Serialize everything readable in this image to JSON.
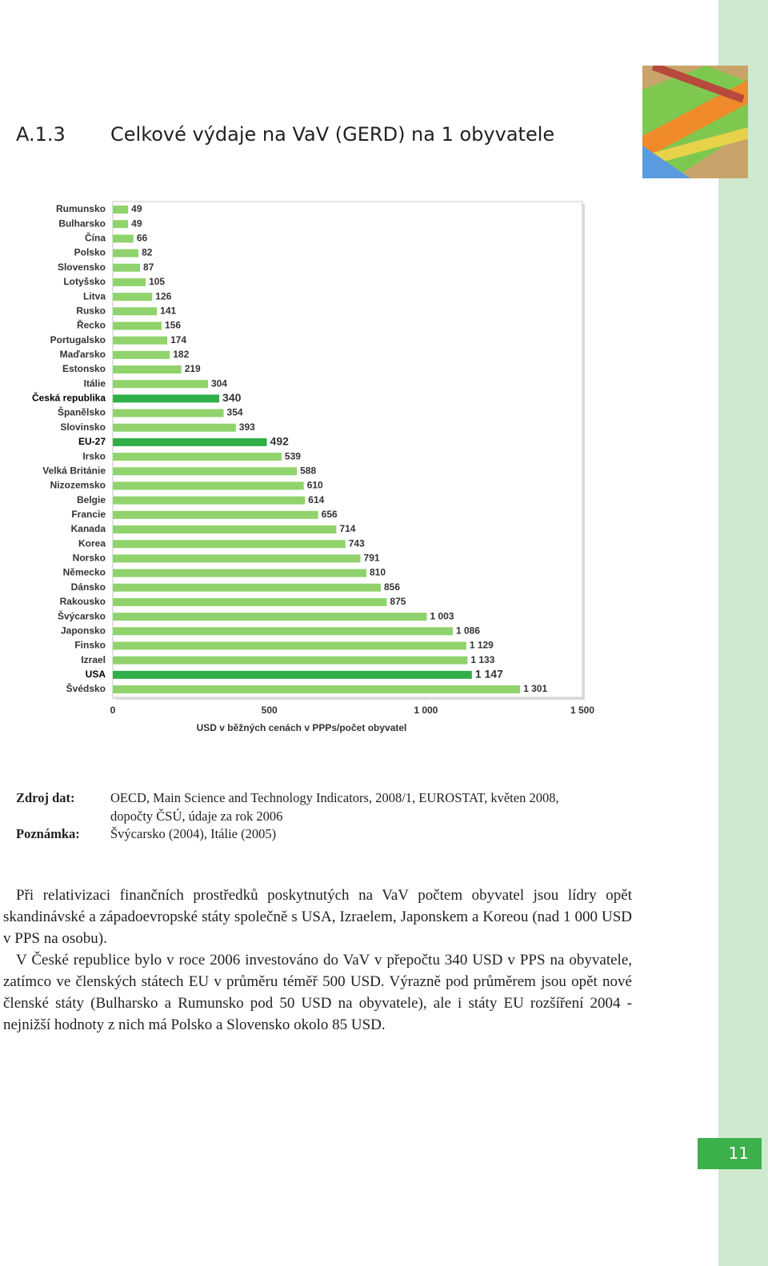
{
  "header": {
    "number": "A.1.3",
    "title": "Celkové výdaje na VaV (GERD) na 1 obyvatele"
  },
  "chart_data": {
    "type": "bar",
    "orientation": "horizontal",
    "categories": [
      "Rumunsko",
      "Bulharsko",
      "Čína",
      "Polsko",
      "Slovensko",
      "Lotyšsko",
      "Litva",
      "Rusko",
      "Řecko",
      "Portugalsko",
      "Maďarsko",
      "Estonsko",
      "Itálie",
      "Česká republika",
      "Španělsko",
      "Slovinsko",
      "EU-27",
      "Irsko",
      "Velká Británie",
      "Nizozemsko",
      "Belgie",
      "Francie",
      "Kanada",
      "Korea",
      "Norsko",
      "Německo",
      "Dánsko",
      "Rakousko",
      "Švýcarsko",
      "Japonsko",
      "Finsko",
      "Izrael",
      "USA",
      "Švédsko"
    ],
    "values": [
      49,
      49,
      66,
      82,
      87,
      105,
      126,
      141,
      156,
      174,
      182,
      219,
      304,
      340,
      354,
      393,
      492,
      539,
      588,
      610,
      614,
      656,
      714,
      743,
      791,
      810,
      856,
      875,
      1003,
      1086,
      1129,
      1133,
      1147,
      1301
    ],
    "value_labels": [
      "49",
      "49",
      "66",
      "82",
      "87",
      "105",
      "126",
      "141",
      "156",
      "174",
      "182",
      "219",
      "304",
      "340",
      "354",
      "393",
      "492",
      "539",
      "588",
      "610",
      "614",
      "656",
      "714",
      "743",
      "791",
      "810",
      "856",
      "875",
      "1 003",
      "1 086",
      "1 129",
      "1 133",
      "1 147",
      "1 301"
    ],
    "color": "#90d36c",
    "colors": [
      "#90d36c",
      "#90d36c",
      "#90d36c",
      "#90d36c",
      "#90d36c",
      "#90d36c",
      "#90d36c",
      "#90d36c",
      "#90d36c",
      "#90d36c",
      "#90d36c",
      "#90d36c",
      "#90d36c",
      "#2fae4a",
      "#90d36c",
      "#90d36c",
      "#2fae4a",
      "#90d36c",
      "#90d36c",
      "#90d36c",
      "#90d36c",
      "#90d36c",
      "#90d36c",
      "#90d36c",
      "#90d36c",
      "#90d36c",
      "#90d36c",
      "#90d36c",
      "#90d36c",
      "#90d36c",
      "#90d36c",
      "#90d36c",
      "#2fae4a",
      "#90d36c"
    ],
    "xlim": [
      0,
      1500
    ],
    "xticks": [
      0,
      500,
      {
        "value": 1000,
        "label": "1 000"
      },
      {
        "value": 1500,
        "label": "1 500"
      }
    ],
    "xlabel": "USD v běžných cenách v PPPs/počet obyvatel"
  },
  "notes": [
    {
      "label": "Zdroj dat:",
      "lines": [
        "OECD, Main Science and Technology Indicators, 2008/1, EUROSTAT, květen 2008,",
        "dopočty ČSÚ, údaje za rok 2006"
      ]
    },
    {
      "label": "Poznámka:",
      "lines": [
        "Švýcarsko (2004), Itálie (2005)"
      ]
    }
  ],
  "paragraphs": [
    "Při relativizaci finančních prostředků poskytnutých na VaV počtem obyvatel jsou lídry opět skandinávské a západoevropské státy společně s USA, Izraelem, Japonskem a Koreou (nad 1 000 USD v PPS na osobu).",
    "V České republice bylo v roce 2006 investováno do VaV v přepočtu 340 USD v PPS na obyvatele, zatímco ve členských státech EU v průměru téměř 500 USD. Výrazně pod průměrem jsou opět nové členské státy (Bulharsko a Rumunsko pod 50 USD na obyvatele), ale i státy EU rozšíření 2004 - nejnižší hodnoty z nich má Polsko a Slovensko okolo 85 USD."
  ],
  "page_number": "11"
}
